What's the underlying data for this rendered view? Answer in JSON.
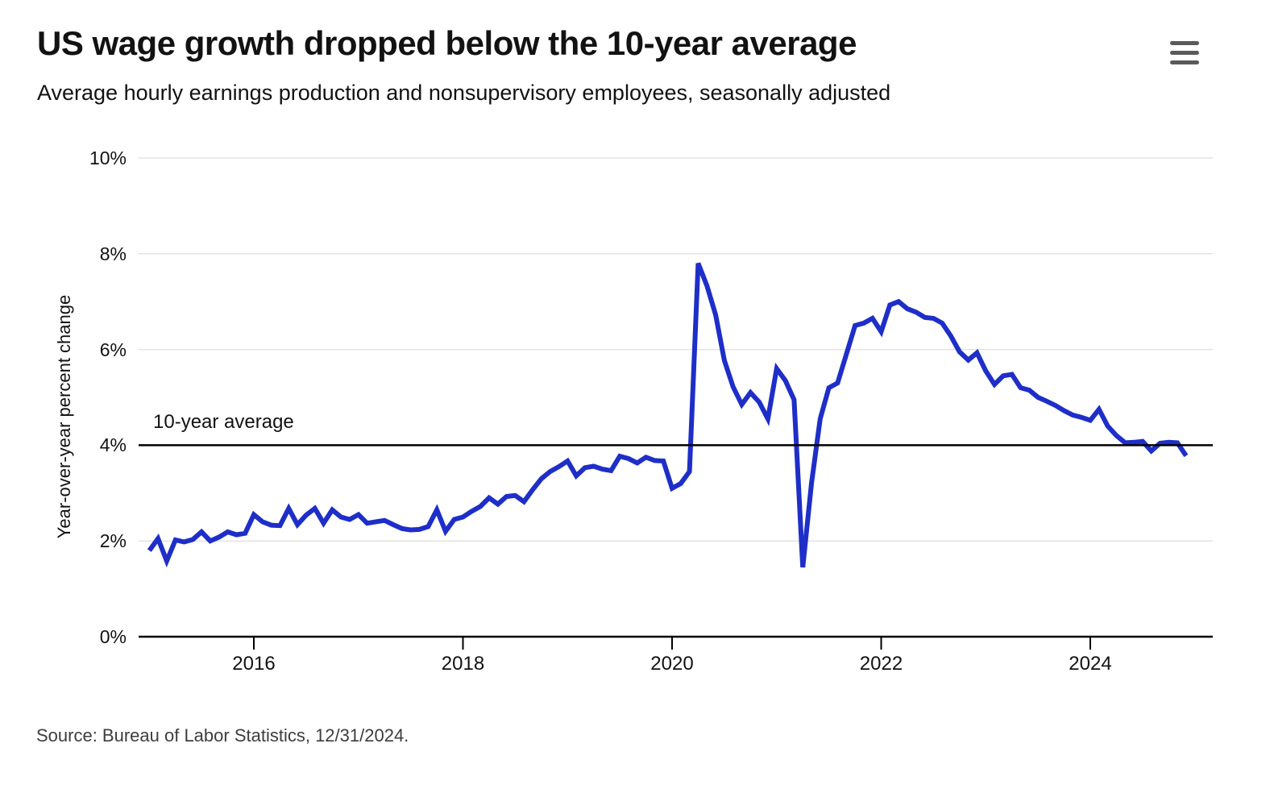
{
  "header": {
    "title": "US wage growth dropped below the 10-year average",
    "subtitle": "Average hourly earnings production and nonsupervisory employees, seasonally adjusted",
    "menu_icon": "hamburger-menu-icon"
  },
  "chart_data": {
    "type": "line",
    "title": "US wage growth dropped below the 10-year average",
    "subtitle": "Average hourly earnings production and nonsupervisory employees, seasonally adjusted",
    "xlabel": "",
    "ylabel": "Year-over-year percent change",
    "ylim": [
      0,
      10
    ],
    "grid": "horizontal",
    "legend_position": "none",
    "line_color": "#1e2ec8",
    "y_ticks": [
      "0%",
      "2%",
      "4%",
      "6%",
      "8%",
      "10%"
    ],
    "y_tick_values": [
      0,
      2,
      4,
      6,
      8,
      10
    ],
    "x_ticks": [
      "2016",
      "2018",
      "2020",
      "2022",
      "2024"
    ],
    "x_tick_years": [
      2016,
      2018,
      2020,
      2022,
      2024
    ],
    "reference_line": {
      "label": "10-year average",
      "value": 4.0,
      "color": "#000000"
    },
    "x": [
      "2015-01",
      "2015-02",
      "2015-03",
      "2015-04",
      "2015-05",
      "2015-06",
      "2015-07",
      "2015-08",
      "2015-09",
      "2015-10",
      "2015-11",
      "2015-12",
      "2016-01",
      "2016-02",
      "2016-03",
      "2016-04",
      "2016-05",
      "2016-06",
      "2016-07",
      "2016-08",
      "2016-09",
      "2016-10",
      "2016-11",
      "2016-12",
      "2017-01",
      "2017-02",
      "2017-03",
      "2017-04",
      "2017-05",
      "2017-06",
      "2017-07",
      "2017-08",
      "2017-09",
      "2017-10",
      "2017-11",
      "2017-12",
      "2018-01",
      "2018-02",
      "2018-03",
      "2018-04",
      "2018-05",
      "2018-06",
      "2018-07",
      "2018-08",
      "2018-09",
      "2018-10",
      "2018-11",
      "2018-12",
      "2019-01",
      "2019-02",
      "2019-03",
      "2019-04",
      "2019-05",
      "2019-06",
      "2019-07",
      "2019-08",
      "2019-09",
      "2019-10",
      "2019-11",
      "2019-12",
      "2020-01",
      "2020-02",
      "2020-03",
      "2020-04",
      "2020-05",
      "2020-06",
      "2020-07",
      "2020-08",
      "2020-09",
      "2020-10",
      "2020-11",
      "2020-12",
      "2021-01",
      "2021-02",
      "2021-03",
      "2021-04",
      "2021-05",
      "2021-06",
      "2021-07",
      "2021-08",
      "2021-09",
      "2021-10",
      "2021-11",
      "2021-12",
      "2022-01",
      "2022-02",
      "2022-03",
      "2022-04",
      "2022-05",
      "2022-06",
      "2022-07",
      "2022-08",
      "2022-09",
      "2022-10",
      "2022-11",
      "2022-12",
      "2023-01",
      "2023-02",
      "2023-03",
      "2023-04",
      "2023-05",
      "2023-06",
      "2023-07",
      "2023-08",
      "2023-09",
      "2023-10",
      "2023-11",
      "2023-12",
      "2024-01",
      "2024-02",
      "2024-03",
      "2024-04",
      "2024-05",
      "2024-06",
      "2024-07",
      "2024-08",
      "2024-09",
      "2024-10",
      "2024-11",
      "2024-12"
    ],
    "series": [
      {
        "name": "Year-over-year percent change in average hourly earnings",
        "color": "#1e2ec8",
        "values": [
          1.8,
          2.05,
          1.58,
          2.02,
          1.98,
          2.03,
          2.19,
          2.0,
          2.08,
          2.19,
          2.13,
          2.16,
          2.55,
          2.4,
          2.33,
          2.32,
          2.68,
          2.34,
          2.54,
          2.68,
          2.37,
          2.65,
          2.5,
          2.45,
          2.55,
          2.37,
          2.4,
          2.43,
          2.34,
          2.26,
          2.23,
          2.24,
          2.3,
          2.65,
          2.2,
          2.45,
          2.5,
          2.62,
          2.72,
          2.9,
          2.77,
          2.93,
          2.95,
          2.82,
          3.07,
          3.3,
          3.45,
          3.55,
          3.67,
          3.36,
          3.53,
          3.56,
          3.5,
          3.47,
          3.77,
          3.72,
          3.63,
          3.75,
          3.68,
          3.67,
          3.1,
          3.2,
          3.45,
          7.8,
          7.33,
          6.72,
          5.77,
          5.22,
          4.85,
          5.1,
          4.9,
          4.55,
          5.6,
          5.35,
          4.95,
          1.45,
          3.2,
          4.55,
          5.2,
          5.3,
          5.9,
          6.5,
          6.55,
          6.65,
          6.37,
          6.93,
          7.0,
          6.85,
          6.78,
          6.67,
          6.65,
          6.55,
          6.28,
          5.95,
          5.78,
          5.93,
          5.55,
          5.27,
          5.45,
          5.48,
          5.2,
          5.15,
          5.0,
          4.92,
          4.83,
          4.72,
          4.63,
          4.58,
          4.52,
          4.75,
          4.4,
          4.2,
          4.05,
          4.06,
          4.08,
          3.88,
          4.04,
          4.06,
          4.05,
          3.78
        ]
      }
    ]
  },
  "style": {
    "grid_color": "#e3e3e3",
    "axis_color": "#000000",
    "text_color": "#121212",
    "source_color": "#3d3d3d",
    "menu_color": "#5a5a5a"
  },
  "footer": {
    "source": "Source: Bureau of Labor Statistics, 12/31/2024."
  }
}
